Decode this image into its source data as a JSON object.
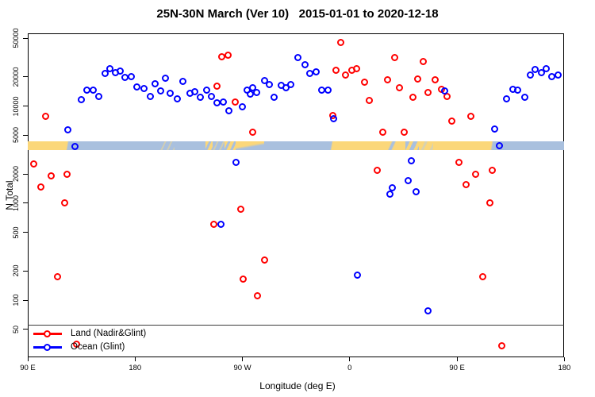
{
  "title": "25N-30N March (Ver 10)   2015-01-01 to 2020-12-18",
  "axes": {
    "y_label": "N Total",
    "x_label": "Longitude (deg E)"
  },
  "legend": {
    "items": [
      {
        "label": "Land (Nadir&Glint)",
        "color": "#ff0000"
      },
      {
        "label": "Ocean (Glint)",
        "color": "#0000ff"
      }
    ]
  },
  "colors": {
    "land_series": "#ff0000",
    "ocean_series": "#0000ff",
    "strip_land": "#FBD77A",
    "strip_ocean": "#A9C0DE",
    "axis": "#000000"
  },
  "chart_data": {
    "type": "scatter",
    "title": "25N-30N March (Ver 10)   2015-01-01 to 2020-12-18",
    "xlabel": "Longitude (deg E)",
    "ylabel": "N Total",
    "x_axis": {
      "range": [
        90,
        540
      ],
      "note": "longitude wraps eastward: 90E to 180 to 90W to 0 to 90E to 180",
      "tick_lons": [
        90,
        180,
        270,
        360,
        450,
        540
      ],
      "tick_labels": [
        "90 E",
        "180",
        "90 W",
        "0",
        "90 E",
        "180"
      ]
    },
    "y_axis": {
      "scale": "log10",
      "range": [
        45,
        56000
      ],
      "ticks": [
        50,
        100,
        200,
        500,
        1000,
        2000,
        5000,
        10000,
        20000,
        50000
      ],
      "tick_labels": [
        "50",
        "100",
        "200",
        "500",
        "1000",
        "2000",
        "5000",
        "10000",
        "20000",
        "50000"
      ]
    },
    "grid": false,
    "legend_position": "bottom-left",
    "legend_box_top_line": true,
    "series": [
      {
        "name": "Land (Nadir&Glint)",
        "color": "#ff0000",
        "marker": "open-circle",
        "points": [
          [
            95,
            2500
          ],
          [
            101,
            1450
          ],
          [
            105,
            7800
          ],
          [
            110,
            1900
          ],
          [
            115,
            175
          ],
          [
            121,
            1000
          ],
          [
            123,
            1950
          ],
          [
            131,
            35
          ],
          [
            246,
            600
          ],
          [
            249,
            16000
          ],
          [
            253,
            32000
          ],
          [
            258,
            33000
          ],
          [
            264,
            11000
          ],
          [
            269,
            860
          ],
          [
            271,
            165
          ],
          [
            279,
            5300
          ],
          [
            283,
            110
          ],
          [
            289,
            260
          ],
          [
            346,
            7900
          ],
          [
            349,
            23000
          ],
          [
            353,
            45000
          ],
          [
            357,
            20700
          ],
          [
            362,
            23200
          ],
          [
            366,
            24000
          ],
          [
            373,
            17500
          ],
          [
            377,
            11300
          ],
          [
            383,
            2160
          ],
          [
            388,
            5300
          ],
          [
            392,
            18500
          ],
          [
            398,
            31300
          ],
          [
            402,
            15300
          ],
          [
            406,
            5300
          ],
          [
            413,
            12200
          ],
          [
            417,
            19000
          ],
          [
            422,
            28500
          ],
          [
            426,
            13700
          ],
          [
            432,
            18500
          ],
          [
            437,
            14800
          ],
          [
            442,
            12400
          ],
          [
            446,
            6900
          ],
          [
            452,
            2600
          ],
          [
            458,
            1540
          ],
          [
            462,
            7800
          ],
          [
            466,
            1950
          ],
          [
            472,
            175
          ],
          [
            478,
            1000
          ],
          [
            480,
            2160
          ],
          [
            488,
            34
          ]
        ]
      },
      {
        "name": "Ocean (Glint)",
        "color": "#0000ff",
        "marker": "open-circle",
        "points": [
          [
            124,
            5600
          ],
          [
            130,
            3800
          ],
          [
            135,
            11500
          ],
          [
            140,
            14500
          ],
          [
            145,
            14500
          ],
          [
            150,
            12400
          ],
          [
            155,
            21500
          ],
          [
            159,
            24000
          ],
          [
            164,
            21900
          ],
          [
            168,
            22700
          ],
          [
            172,
            19600
          ],
          [
            177,
            20000
          ],
          [
            182,
            15600
          ],
          [
            188,
            15000
          ],
          [
            193,
            12400
          ],
          [
            197,
            16800
          ],
          [
            202,
            14200
          ],
          [
            206,
            19200
          ],
          [
            210,
            13400
          ],
          [
            216,
            11800
          ],
          [
            220,
            17800
          ],
          [
            226,
            13400
          ],
          [
            230,
            13900
          ],
          [
            235,
            12200
          ],
          [
            240,
            14500
          ],
          [
            244,
            12400
          ],
          [
            249,
            10700
          ],
          [
            252,
            600
          ],
          [
            254,
            10900
          ],
          [
            259,
            8900
          ],
          [
            265,
            2600
          ],
          [
            270,
            9800
          ],
          [
            274,
            14500
          ],
          [
            277,
            13200
          ],
          [
            279,
            15300
          ],
          [
            282,
            13700
          ],
          [
            289,
            18200
          ],
          [
            293,
            16500
          ],
          [
            297,
            12200
          ],
          [
            303,
            16200
          ],
          [
            307,
            15300
          ],
          [
            311,
            16500
          ],
          [
            317,
            31300
          ],
          [
            323,
            26400
          ],
          [
            327,
            21500
          ],
          [
            332,
            22300
          ],
          [
            337,
            14500
          ],
          [
            342,
            14500
          ],
          [
            347,
            7300
          ],
          [
            367,
            180
          ],
          [
            394,
            1230
          ],
          [
            396,
            1430
          ],
          [
            409,
            1700
          ],
          [
            412,
            2700
          ],
          [
            416,
            1300
          ],
          [
            426,
            77
          ],
          [
            440,
            14200
          ],
          [
            482,
            5800
          ],
          [
            486,
            3900
          ],
          [
            492,
            11800
          ],
          [
            497,
            14700
          ],
          [
            501,
            14500
          ],
          [
            507,
            12200
          ],
          [
            512,
            20700
          ],
          [
            516,
            23600
          ],
          [
            521,
            22000
          ],
          [
            525,
            24000
          ],
          [
            530,
            20000
          ],
          [
            535,
            20700
          ]
        ]
      },
      {
        "name": "land-ocean-map-strip",
        "kind": "background-strip",
        "value_band": [
          3500,
          4300
        ],
        "segments": [
          {
            "from": 90,
            "to": 121,
            "surface": "land"
          },
          {
            "from": 121,
            "to": 125,
            "surface": "coast_lo"
          },
          {
            "from": 125,
            "to": 201,
            "surface": "ocean"
          },
          {
            "from": 201,
            "to": 213,
            "surface": "ocean_mix"
          },
          {
            "from": 213,
            "to": 239,
            "surface": "ocean"
          },
          {
            "from": 239,
            "to": 245,
            "surface": "land_mix"
          },
          {
            "from": 245,
            "to": 255,
            "surface": "ocean_mix"
          },
          {
            "from": 255,
            "to": 264,
            "surface": "land_mix"
          },
          {
            "from": 264,
            "to": 288,
            "surface": "gulf_mix"
          },
          {
            "from": 288,
            "to": 343,
            "surface": "ocean"
          },
          {
            "from": 343,
            "to": 347,
            "surface": "coast_ol"
          },
          {
            "from": 347,
            "to": 392,
            "surface": "land"
          },
          {
            "from": 392,
            "to": 399,
            "surface": "redsea_mix"
          },
          {
            "from": 399,
            "to": 407,
            "surface": "land"
          },
          {
            "from": 407,
            "to": 418,
            "surface": "pgulf_mix"
          },
          {
            "from": 418,
            "to": 430,
            "surface": "faint_mix"
          },
          {
            "from": 430,
            "to": 477,
            "surface": "land"
          },
          {
            "from": 477,
            "to": 481,
            "surface": "coast_lo"
          },
          {
            "from": 481,
            "to": 540,
            "surface": "ocean"
          }
        ]
      }
    ]
  }
}
